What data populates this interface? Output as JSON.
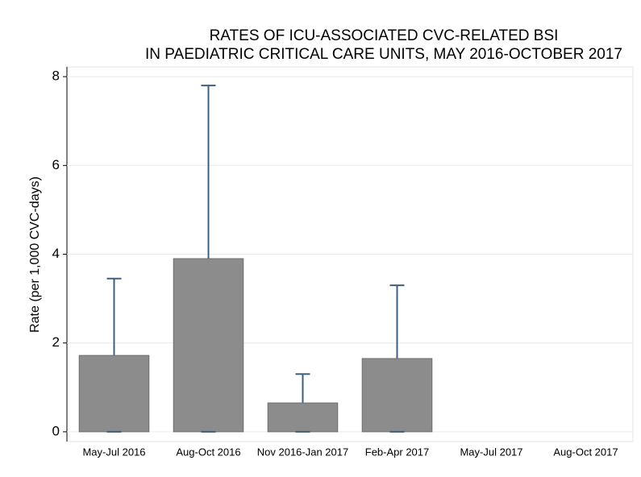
{
  "chart_data": {
    "type": "bar",
    "title": [
      "RATES OF ICU-ASSOCIATED CVC-RELATED BSI",
      "IN PAEDIATRIC CRITICAL CARE UNITS, MAY 2016-OCTOBER 2017"
    ],
    "ylabel": "Rate (per 1,000 CVC-days)",
    "categories": [
      "May-Jul 2016",
      "Aug-Oct 2016",
      "Nov 2016-Jan 2017",
      "Feb-Apr 2017",
      "May-Jul 2017",
      "Aug-Oct 2017"
    ],
    "values": [
      1.72,
      3.9,
      0.65,
      1.65,
      0,
      0
    ],
    "ci_lower": [
      0,
      0,
      0,
      0,
      null,
      null
    ],
    "ci_upper": [
      3.45,
      7.8,
      1.3,
      3.3,
      null,
      null
    ],
    "color": "#8c8c8c",
    "error_color": "#3e5f7d",
    "ylim": [
      -0.22,
      8.22
    ],
    "yticks": [
      0,
      2,
      4,
      6,
      8
    ],
    "grid": true
  }
}
